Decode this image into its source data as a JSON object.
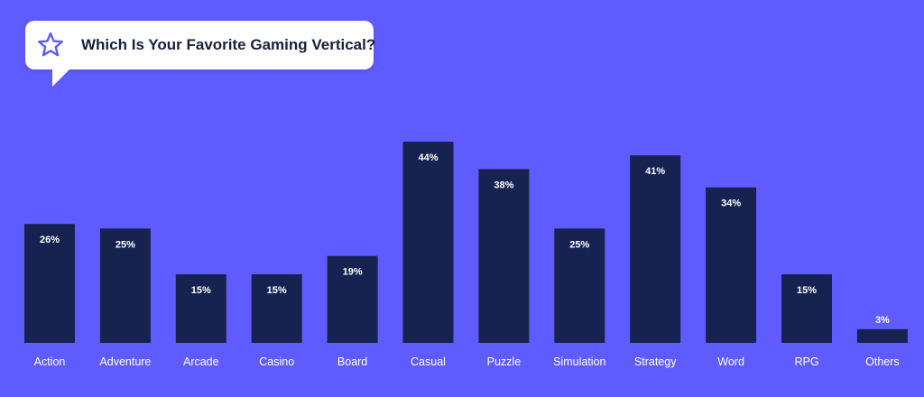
{
  "colors": {
    "background": "#5f5cff",
    "bar": "#162350",
    "bubble": "#ffffff",
    "accent": "#5f5cff"
  },
  "header": {
    "title": "Which Is Your Favorite Gaming Vertical?",
    "icon": "star-icon"
  },
  "chart_data": {
    "type": "bar",
    "title": "Which Is Your Favorite Gaming Vertical?",
    "categories": [
      "Action",
      "Adventure",
      "Arcade",
      "Casino",
      "Board",
      "Casual",
      "Puzzle",
      "Simulation",
      "Strategy",
      "Word",
      "RPG",
      "Others"
    ],
    "values": [
      26,
      25,
      15,
      15,
      19,
      44,
      38,
      25,
      41,
      34,
      15,
      3
    ],
    "labels": [
      "26%",
      "25%",
      "15%",
      "15%",
      "19%",
      "44%",
      "38%",
      "25%",
      "41%",
      "34%",
      "15%",
      "3%"
    ],
    "xlabel": "",
    "ylabel": "",
    "ylim": [
      0,
      44
    ],
    "grid": false,
    "legend": "none"
  }
}
